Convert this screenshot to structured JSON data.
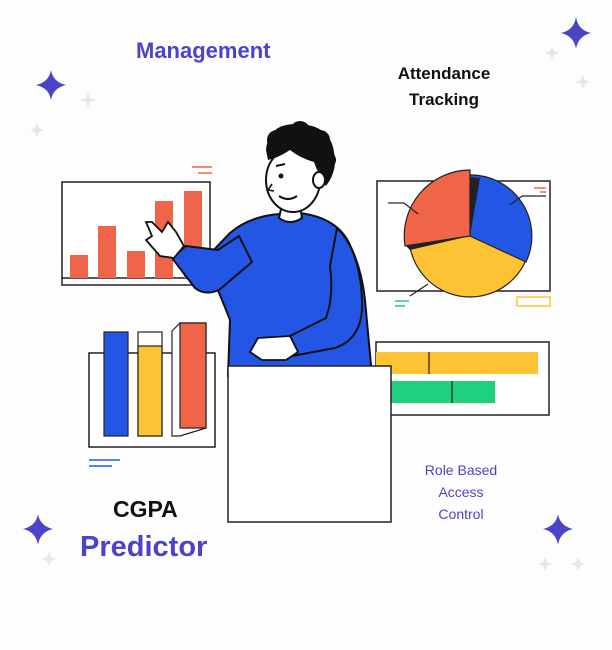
{
  "labels": {
    "management": "Management",
    "attendance_line1": "Attendance",
    "attendance_line2": "Tracking",
    "role_line1": "Role Based",
    "role_line2": "Access",
    "role_line3": "Control",
    "cgpa": "CGPA",
    "predictor": "Predictor"
  },
  "icons": [
    "sparkle-icon",
    "person-illustration",
    "bar-chart-icon",
    "pie-chart-icon",
    "horizontal-bar-icon",
    "blank-board-icon"
  ],
  "colors": {
    "brand_blue": "#4b44c8",
    "bar_orange": "#f0654a",
    "bar_blue": "#2456e6",
    "bar_yellow": "#fec335",
    "bar_green": "#1fd07e",
    "ink": "#111111"
  }
}
